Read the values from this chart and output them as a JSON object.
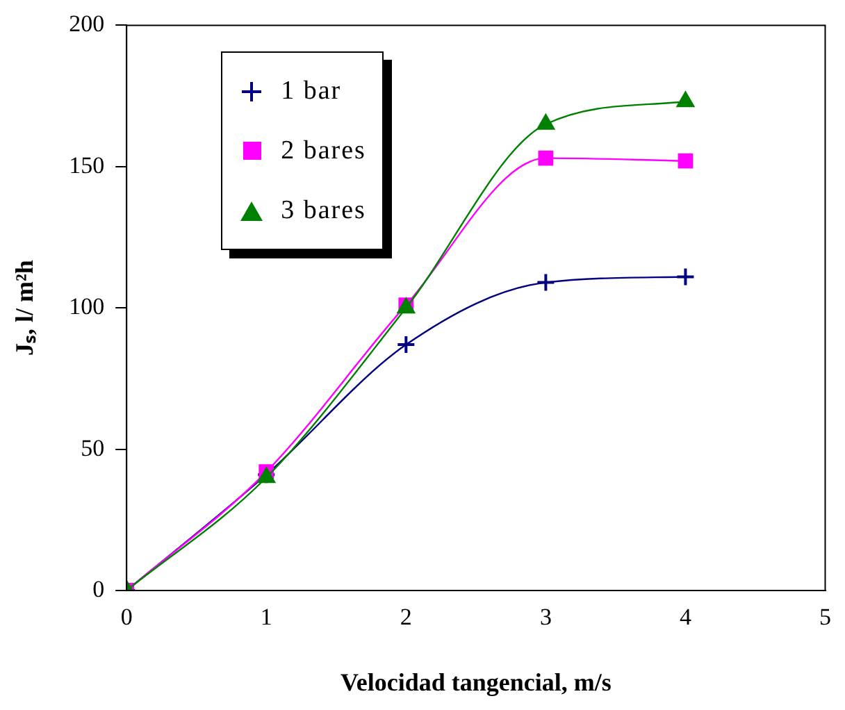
{
  "chart_data": {
    "type": "line",
    "xlabel": "Velocidad tangencial, m/s",
    "ylabel": "Jₛ, l/ m²h",
    "x": [
      0,
      1,
      2,
      3,
      4
    ],
    "xlim": [
      0,
      5
    ],
    "xticks": [
      0,
      1,
      2,
      3,
      4,
      5
    ],
    "ylim": [
      0,
      200
    ],
    "yticks": [
      0,
      50,
      100,
      150,
      200
    ],
    "grid": false,
    "legend": "top left",
    "series": [
      {
        "name": "1 bar",
        "color": "#000080",
        "marker": "cross",
        "values": [
          0,
          41,
          87,
          109,
          111
        ]
      },
      {
        "name": "2 bares",
        "color": "#ff00ff",
        "marker": "square",
        "values": [
          0,
          42,
          101,
          153,
          152
        ]
      },
      {
        "name": "3 bares",
        "color": "#008000",
        "marker": "triangle",
        "values": [
          0,
          40,
          100,
          165,
          173
        ]
      }
    ]
  }
}
